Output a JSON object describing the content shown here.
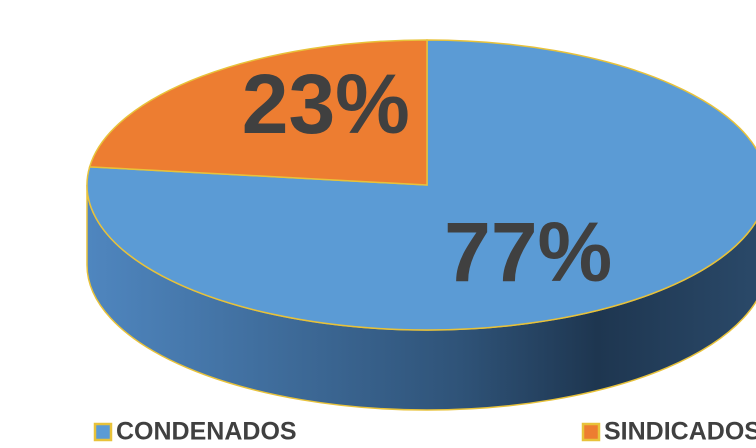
{
  "chart_data": {
    "type": "pie",
    "categories": [
      "CONDENADOS",
      "SINDICADOS"
    ],
    "values": [
      77,
      23
    ],
    "value_labels": [
      "77%",
      "23%"
    ],
    "colors": [
      "#5b9bd5",
      "#ed7d31"
    ],
    "legend": "bottom"
  }
}
